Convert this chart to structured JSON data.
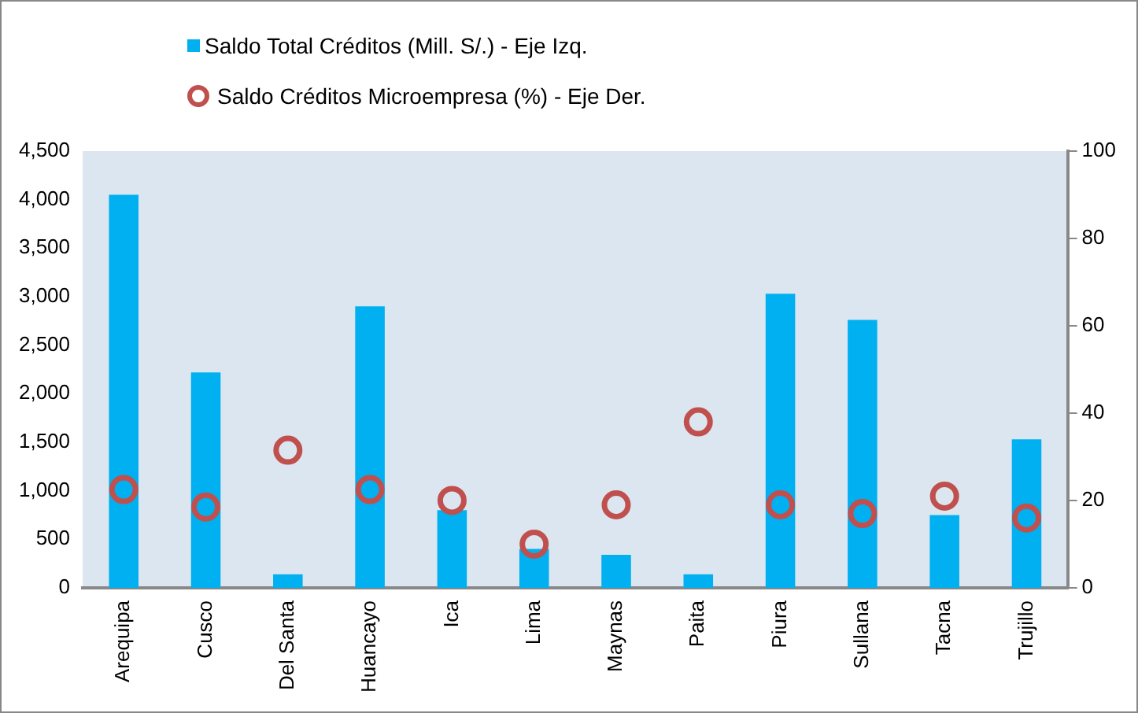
{
  "chart_data": {
    "type": "bar",
    "categories": [
      "Arequipa",
      "Cusco",
      "Del Santa",
      "Huancayo",
      "Ica",
      "Lima",
      "Maynas",
      "Paita",
      "Piura",
      "Sullana",
      "Tacna",
      "Trujillo"
    ],
    "series": [
      {
        "name": "Saldo Total Créditos (Mill. S/.) - Eje Izq.",
        "color": "#00b0f0",
        "values": [
          4050,
          2220,
          140,
          2900,
          800,
          400,
          340,
          140,
          3030,
          2760,
          750,
          1530
        ]
      },
      {
        "name": "Saldo Créditos Microempresa (%) - Eje Der.",
        "type": "scatter",
        "axis": "y2",
        "marker": "circle",
        "color": "#c0504d",
        "x": [
          "Arequipa",
          "Cusco",
          "Del Santa",
          "Huancayo",
          "Ica",
          "Lima",
          "Maynas",
          "Paita",
          "Piura",
          "Sullana",
          "Tacna",
          "Trujillo"
        ],
        "values": [
          22.5,
          18.5,
          31.5,
          22.5,
          20,
          10,
          19,
          38,
          19,
          17,
          21,
          16
        ]
      }
    ],
    "ylim": [
      0,
      4500
    ],
    "yticks": [
      0,
      {
        "value": 500,
        "label": "500"
      },
      {
        "value": 1000,
        "label": "1,000"
      },
      {
        "value": 1500,
        "label": "1,500"
      },
      {
        "value": 2000,
        "label": "2,000"
      },
      {
        "value": 2500,
        "label": "2,500"
      },
      {
        "value": 3000,
        "label": "3,000"
      },
      {
        "value": 3500,
        "label": "3,500"
      },
      {
        "value": 4000,
        "label": "4,000"
      },
      {
        "value": 4500,
        "label": "4,500"
      }
    ],
    "y2lim": [
      0,
      100
    ],
    "y2ticks": [
      0,
      20,
      40,
      60,
      80,
      100
    ],
    "grid": false,
    "legend": "top"
  }
}
